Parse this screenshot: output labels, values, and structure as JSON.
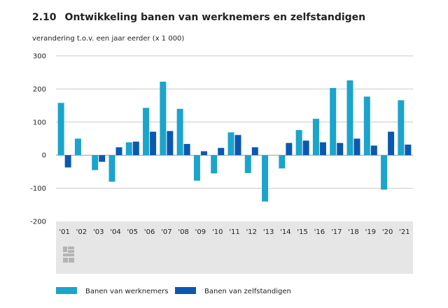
{
  "header": {
    "number": "2.10",
    "title": "Ontwikkeling banen van werknemers en zelfstandigen",
    "subtitle": "verandering t.o.v. een jaar eerder (x 1 000)"
  },
  "colors": {
    "werknemers": "#1BA4CC",
    "zelfstandigen": "#0B58B0",
    "axis_band": "#e6e6e6",
    "grid": "#c8c8c8",
    "logo": "#b4b4b4"
  },
  "logo_icon": "cbs-logo-icon",
  "chart_data": {
    "type": "bar",
    "title": "Ontwikkeling banen van werknemers en zelfstandigen",
    "ylabel": "verandering t.o.v. een jaar eerder (x 1 000)",
    "xlabel": "",
    "categories": [
      "'01",
      "'02",
      "'03",
      "'04",
      "'05",
      "'06",
      "'07",
      "'08",
      "'09",
      "'10",
      "'11",
      "'12",
      "'13",
      "'14",
      "'15",
      "'16",
      "'17",
      "'18",
      "'19",
      "'20",
      "'21"
    ],
    "series": [
      {
        "name": "Banen van werknemers",
        "values": [
          158,
          50,
          -45,
          -80,
          39,
          143,
          222,
          140,
          -77,
          -55,
          69,
          -54,
          -140,
          -40,
          76,
          110,
          203,
          226,
          177,
          -104,
          166
        ]
      },
      {
        "name": "Banen van zelfstandigen",
        "values": [
          -37,
          0,
          -20,
          24,
          41,
          71,
          73,
          34,
          12,
          22,
          61,
          24,
          0,
          37,
          44,
          39,
          37,
          50,
          29,
          71,
          32
        ]
      }
    ],
    "ylim": [
      -200,
      300
    ],
    "yticks": [
      "300",
      "200",
      "100",
      "0",
      "-100",
      "-200"
    ],
    "grid": true,
    "legend_position": "bottom"
  }
}
